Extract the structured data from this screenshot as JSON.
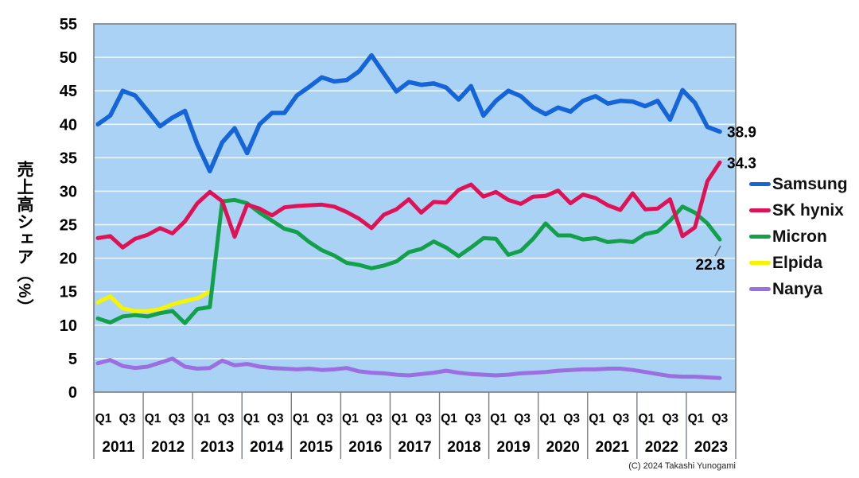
{
  "footer": {
    "copyright": "(C) 2024 Takashi Yunogami"
  },
  "chart_data": {
    "type": "line",
    "title": "",
    "ylabel": "売上高シェア（%）",
    "xlabel": "",
    "ylim": [
      0,
      55
    ],
    "grid": true,
    "legend_position": "right",
    "n_points": 51,
    "yticks": [
      0,
      5,
      10,
      15,
      20,
      25,
      30,
      35,
      40,
      45,
      50,
      55
    ],
    "x_years": [
      "2011",
      "2012",
      "2013",
      "2014",
      "2015",
      "2016",
      "2017",
      "2018",
      "2019",
      "2020",
      "2021",
      "2022",
      "2023"
    ],
    "x_quarter_labels": [
      "Q1",
      "Q3"
    ],
    "colors": {
      "plot_bg": "#A9D2F5",
      "grid": "#ECF6FE",
      "border": "#7A7F85",
      "text": "#000000"
    },
    "series": [
      {
        "name": "Samsung",
        "color": "#1565D8",
        "values": [
          40.0,
          41.3,
          45.0,
          44.3,
          42.0,
          39.7,
          41.0,
          42.0,
          37.0,
          33.0,
          37.3,
          39.4,
          35.7,
          40.0,
          41.7,
          41.7,
          44.3,
          45.6,
          47.0,
          46.4,
          46.6,
          47.9,
          50.3,
          47.6,
          44.9,
          46.3,
          45.9,
          46.1,
          45.5,
          43.7,
          45.7,
          41.3,
          43.5,
          45.0,
          44.2,
          42.5,
          41.5,
          42.5,
          41.9,
          43.5,
          44.2,
          43.1,
          43.5,
          43.4,
          42.7,
          43.5,
          40.7,
          45.1,
          43.2,
          39.6,
          38.9
        ]
      },
      {
        "name": "SK hynix",
        "color": "#E01257",
        "values": [
          23.0,
          23.3,
          21.6,
          22.9,
          23.5,
          24.5,
          23.7,
          25.5,
          28.2,
          29.9,
          28.5,
          23.2,
          28.0,
          27.4,
          26.4,
          27.6,
          27.8,
          27.9,
          28.0,
          27.7,
          26.9,
          25.9,
          24.5,
          26.5,
          27.3,
          28.8,
          26.8,
          28.4,
          28.3,
          30.2,
          31.0,
          29.2,
          29.9,
          28.7,
          28.1,
          29.2,
          29.3,
          30.1,
          28.2,
          29.5,
          29.0,
          27.9,
          27.2,
          29.7,
          27.3,
          27.4,
          28.8,
          23.3,
          24.6,
          31.5,
          34.3
        ]
      },
      {
        "name": "Micron",
        "color": "#12A04B",
        "values": [
          11.0,
          10.4,
          11.3,
          11.5,
          11.3,
          11.8,
          12.1,
          10.3,
          12.4,
          12.7,
          28.5,
          28.7,
          28.2,
          26.8,
          25.6,
          24.4,
          23.9,
          22.4,
          21.2,
          20.4,
          19.3,
          19.0,
          18.5,
          18.9,
          19.5,
          20.9,
          21.4,
          22.5,
          21.6,
          20.3,
          21.6,
          23.0,
          22.9,
          20.5,
          21.1,
          22.9,
          25.2,
          23.4,
          23.4,
          22.8,
          23.0,
          22.4,
          22.6,
          22.4,
          23.6,
          24.0,
          25.6,
          27.7,
          26.8,
          25.2,
          22.8
        ]
      },
      {
        "name": "Elpida",
        "color": "#F7F400",
        "values": [
          13.4,
          14.3,
          12.5,
          12.1,
          12.1,
          12.4,
          13.1,
          13.6,
          14.0,
          15.0
        ]
      },
      {
        "name": "Nanya",
        "color": "#9B6FE0",
        "values": [
          4.3,
          4.8,
          3.9,
          3.6,
          3.8,
          4.4,
          5.0,
          3.8,
          3.5,
          3.6,
          4.7,
          4.0,
          4.2,
          3.8,
          3.6,
          3.5,
          3.4,
          3.5,
          3.3,
          3.4,
          3.6,
          3.1,
          2.9,
          2.8,
          2.6,
          2.5,
          2.7,
          2.9,
          3.2,
          2.9,
          2.7,
          2.6,
          2.5,
          2.6,
          2.8,
          2.9,
          3.0,
          3.2,
          3.3,
          3.4,
          3.4,
          3.5,
          3.5,
          3.3,
          3.0,
          2.7,
          2.4,
          2.3,
          2.3,
          2.2,
          2.1
        ]
      }
    ],
    "end_labels": [
      {
        "series": "Samsung",
        "text": "38.9",
        "placement": "right"
      },
      {
        "series": "SK hynix",
        "text": "34.3",
        "placement": "right"
      },
      {
        "series": "Micron",
        "text": "22.8",
        "placement": "below-left"
      }
    ]
  }
}
